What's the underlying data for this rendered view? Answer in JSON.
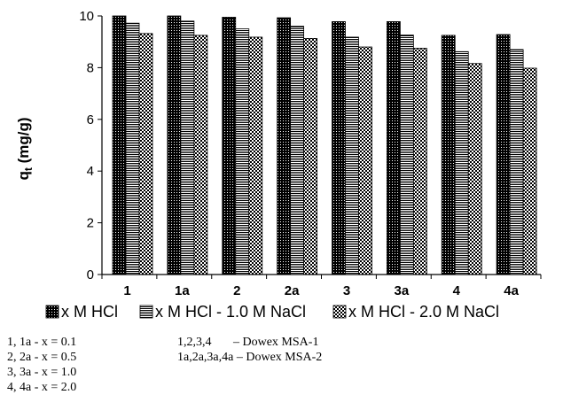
{
  "chart_data": {
    "type": "bar",
    "categories": [
      "1",
      "1a",
      "2",
      "2a",
      "3",
      "3a",
      "4",
      "4a"
    ],
    "series": [
      {
        "name": "x M HCl",
        "values": [
          10.0,
          10.0,
          9.95,
          9.93,
          9.78,
          9.78,
          9.25,
          9.28
        ],
        "pattern": "dots"
      },
      {
        "name": "x M HCl - 1.0 M NaCl",
        "values": [
          9.72,
          9.8,
          9.5,
          9.6,
          9.18,
          9.26,
          8.62,
          8.7
        ],
        "pattern": "hlines"
      },
      {
        "name": "x M HCl - 2.0 M NaCl",
        "values": [
          9.32,
          9.25,
          9.18,
          9.13,
          8.8,
          8.75,
          8.16,
          7.98
        ],
        "pattern": "checker"
      }
    ],
    "ylim": [
      0,
      10
    ],
    "yticks": [
      "0",
      "2",
      "4",
      "6",
      "8",
      "10"
    ],
    "ylabel_main": "q",
    "ylabel_sub": "t",
    "ylabel_unit": " (mg/g)",
    "xlabel": "",
    "title": "",
    "legend_position": "bottom",
    "grid": false
  },
  "notes": {
    "left": [
      "1, 1a - x = 0.1",
      "2, 2a - x = 0.5",
      "3, 3a - x = 1.0",
      "4, 4a - x = 2.0"
    ],
    "right": [
      "1,2,3,4       – Dowex MSA-1",
      "1a,2a,3a,4a – Dowex MSA-2"
    ]
  }
}
